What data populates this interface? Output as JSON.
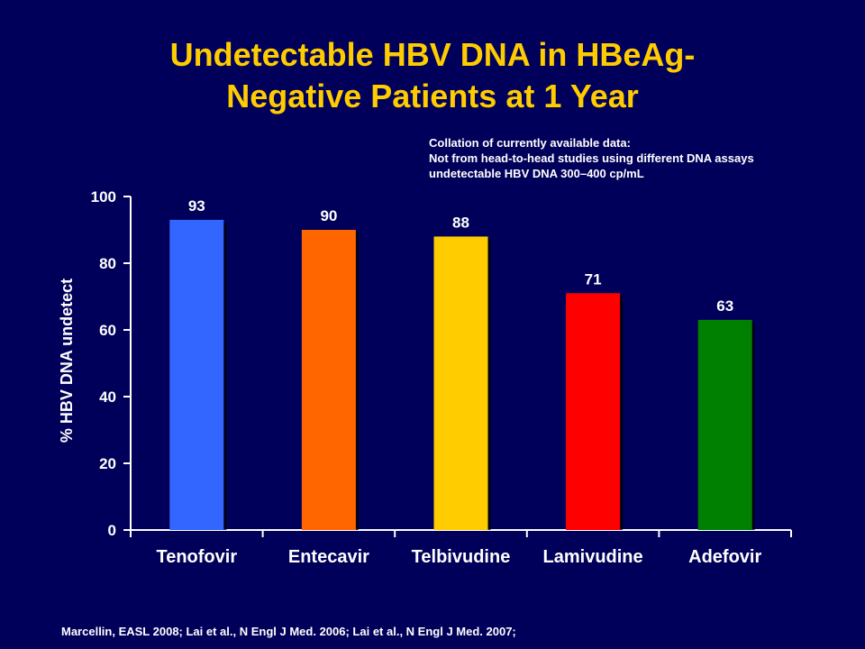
{
  "title": {
    "line1": "Undetectable HBV DNA in HBeAg-",
    "line2": "Negative Patients at 1 Year"
  },
  "note": {
    "line1": "Collation of currently available data:",
    "line2": "Not from head-to-head studies using different DNA assays",
    "line3": "undetectable HBV DNA 300–400 cp/mL"
  },
  "citation": "Marcellin, EASL 2008; Lai et al., N Engl J Med. 2006; Lai et al., N Engl J Med. 2007;",
  "colors": {
    "background": "#00005a",
    "title": "#ffcc00",
    "text": "#ffffff"
  },
  "chart_data": {
    "type": "bar",
    "categories": [
      "Tenofovir",
      "Entecavir",
      "Telbivudine",
      "Lamivudine",
      "Adefovir"
    ],
    "values": [
      93,
      90,
      88,
      71,
      63
    ],
    "data_labels": [
      "93",
      "90",
      "88",
      "71",
      "63"
    ],
    "bar_colors": [
      "#3366ff",
      "#ff6600",
      "#ffcc00",
      "#ff0000",
      "#008000"
    ],
    "ylabel": "% HBV DNA undetect",
    "xlabel": "",
    "ylim": [
      0,
      100
    ],
    "yticks": [
      0,
      20,
      40,
      60,
      80,
      100
    ],
    "grid": false
  }
}
